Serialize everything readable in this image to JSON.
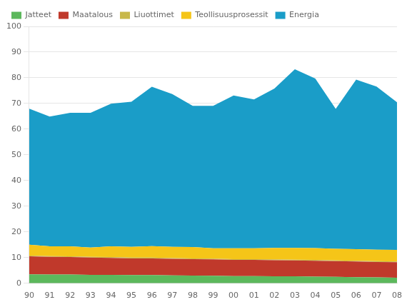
{
  "chart_data": {
    "type": "area",
    "categories": [
      "90",
      "91",
      "92",
      "93",
      "94",
      "95",
      "96",
      "97",
      "98",
      "99",
      "00",
      "01",
      "02",
      "03",
      "04",
      "05",
      "06",
      "07",
      "08"
    ],
    "series": [
      {
        "name": "Jatteet",
        "color": "#5cb85c",
        "values": [
          3.5,
          3.4,
          3.4,
          3.3,
          3.3,
          3.2,
          3.2,
          3.1,
          3.0,
          2.9,
          2.8,
          2.8,
          2.7,
          2.7,
          2.6,
          2.5,
          2.4,
          2.3,
          2.2
        ]
      },
      {
        "name": "Maatalous",
        "color": "#c0392b",
        "values": [
          7.0,
          6.9,
          6.8,
          6.7,
          6.6,
          6.5,
          6.5,
          6.4,
          6.4,
          6.4,
          6.3,
          6.3,
          6.3,
          6.2,
          6.2,
          6.1,
          6.1,
          6.0,
          6.0
        ]
      },
      {
        "name": "Liuottimet",
        "color": "#c8b84a",
        "values": [
          0.3,
          0.3,
          0.3,
          0.3,
          0.3,
          0.3,
          0.3,
          0.3,
          0.3,
          0.3,
          0.3,
          0.3,
          0.3,
          0.3,
          0.3,
          0.3,
          0.3,
          0.3,
          0.3
        ]
      },
      {
        "name": "Teollisuusprosessit",
        "color": "#f5c518",
        "values": [
          4.2,
          3.8,
          3.9,
          3.6,
          4.2,
          4.2,
          4.5,
          4.4,
          4.4,
          4.0,
          4.2,
          4.2,
          4.5,
          4.6,
          4.6,
          4.5,
          4.5,
          4.5,
          4.5
        ]
      },
      {
        "name": "Energia",
        "color": "#1a9dc8",
        "values": [
          53.0,
          50.5,
          52.0,
          52.5,
          55.5,
          56.5,
          62.0,
          59.5,
          55.0,
          55.5,
          59.5,
          58.0,
          62.0,
          69.5,
          66.0,
          54.5,
          66.0,
          63.5,
          57.5
        ]
      }
    ],
    "stacked": true,
    "ylim": [
      0,
      100
    ],
    "yticks": [
      0,
      10,
      20,
      30,
      40,
      50,
      60,
      70,
      80,
      90,
      100
    ],
    "grid": true,
    "legend": "upper left"
  }
}
